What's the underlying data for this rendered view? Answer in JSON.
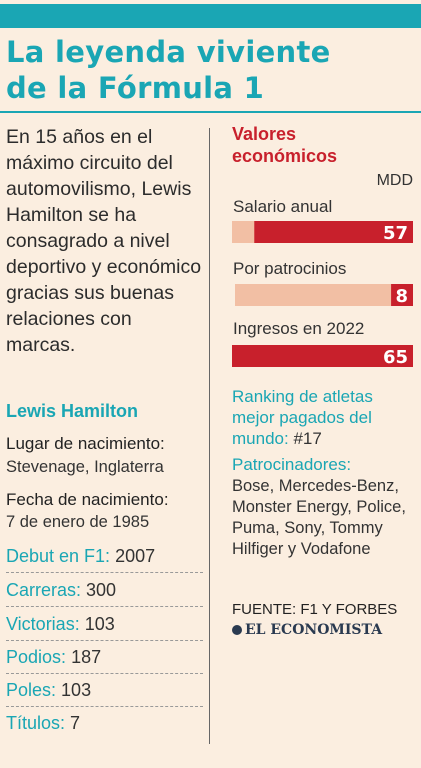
{
  "headline": [
    "La leyenda viviente",
    "de la Fórmula 1"
  ],
  "intro": "En 15 años en el máximo circuito del automovilismo, Lewis Hamilton se ha consagrado a nivel deportivo y económico gracias sus buenas relaciones con marcas.",
  "name": "Lewis Hamilton",
  "birthplace": {
    "label": "Lugar de nacimiento:",
    "value": "Stevenage, Inglaterra"
  },
  "birthdate": {
    "label": "Fecha de nacimiento:",
    "value": "7 de enero de 1985"
  },
  "stats": [
    {
      "label": "Debut en F1:",
      "value": "2007"
    },
    {
      "label": "Carreras:",
      "value": "300"
    },
    {
      "label": "Victorias:",
      "value": "103"
    },
    {
      "label": "Podios:",
      "value": "187"
    },
    {
      "label": "Poles:",
      "value": "103"
    },
    {
      "label": "Títulos:",
      "value": "7"
    }
  ],
  "chart_data": {
    "type": "bar",
    "title": "Valores económicos",
    "unit": "MDD",
    "categories": [
      "Salario anual",
      "Por patrocinios",
      "Ingresos en 2022"
    ],
    "values": [
      57,
      8,
      65
    ],
    "ylim": [
      0,
      65
    ]
  },
  "ranking": {
    "label": "Ranking de atletas mejor pagados del mundo:",
    "value": "#17"
  },
  "sponsors": {
    "label": "Patrocinadores:",
    "value": "Bose, Mercedes-Benz, Monster Energy, Police, Puma, Sony, Tommy Hilfiger y Vodafone"
  },
  "source": "FUENTE: F1 Y FORBES",
  "logo": "EL ECONOMISTA",
  "colors": {
    "accent": "#1aa6b4",
    "bar": "#c8202c",
    "bar_track": "#f2bfa4",
    "background": "#fbeee0"
  }
}
